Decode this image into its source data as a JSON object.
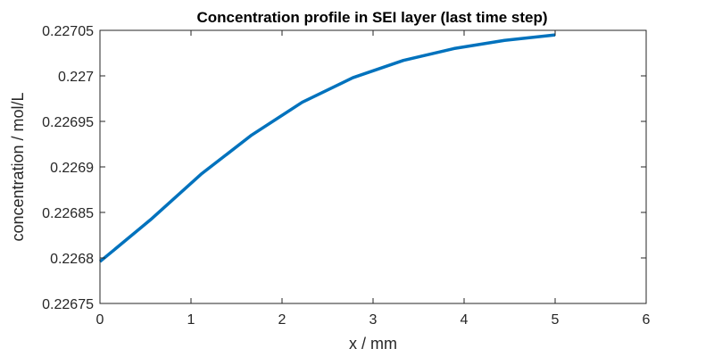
{
  "chart_data": {
    "type": "line",
    "title": "Concentration profile in SEI layer (last time step)",
    "xlabel": "x / mm",
    "ylabel": "concentration / mol/L",
    "xlim": [
      0,
      6
    ],
    "ylim": [
      0.22675,
      0.22705
    ],
    "xticks": [
      "0",
      "1",
      "2",
      "3",
      "4",
      "5",
      "6"
    ],
    "yticks": [
      "0.22675",
      "0.2268",
      "0.22685",
      "0.2269",
      "0.22695",
      "0.227",
      "0.22705"
    ],
    "grid": false,
    "series": [
      {
        "color": "#0072BD",
        "x": [
          0,
          0.556,
          1.111,
          1.667,
          2.222,
          2.778,
          3.333,
          3.889,
          4.444,
          5.0
        ],
        "y": [
          0.226796,
          0.226842,
          0.226892,
          0.226935,
          0.226971,
          0.226998,
          0.227017,
          0.22703,
          0.227039,
          0.227045
        ]
      }
    ]
  }
}
